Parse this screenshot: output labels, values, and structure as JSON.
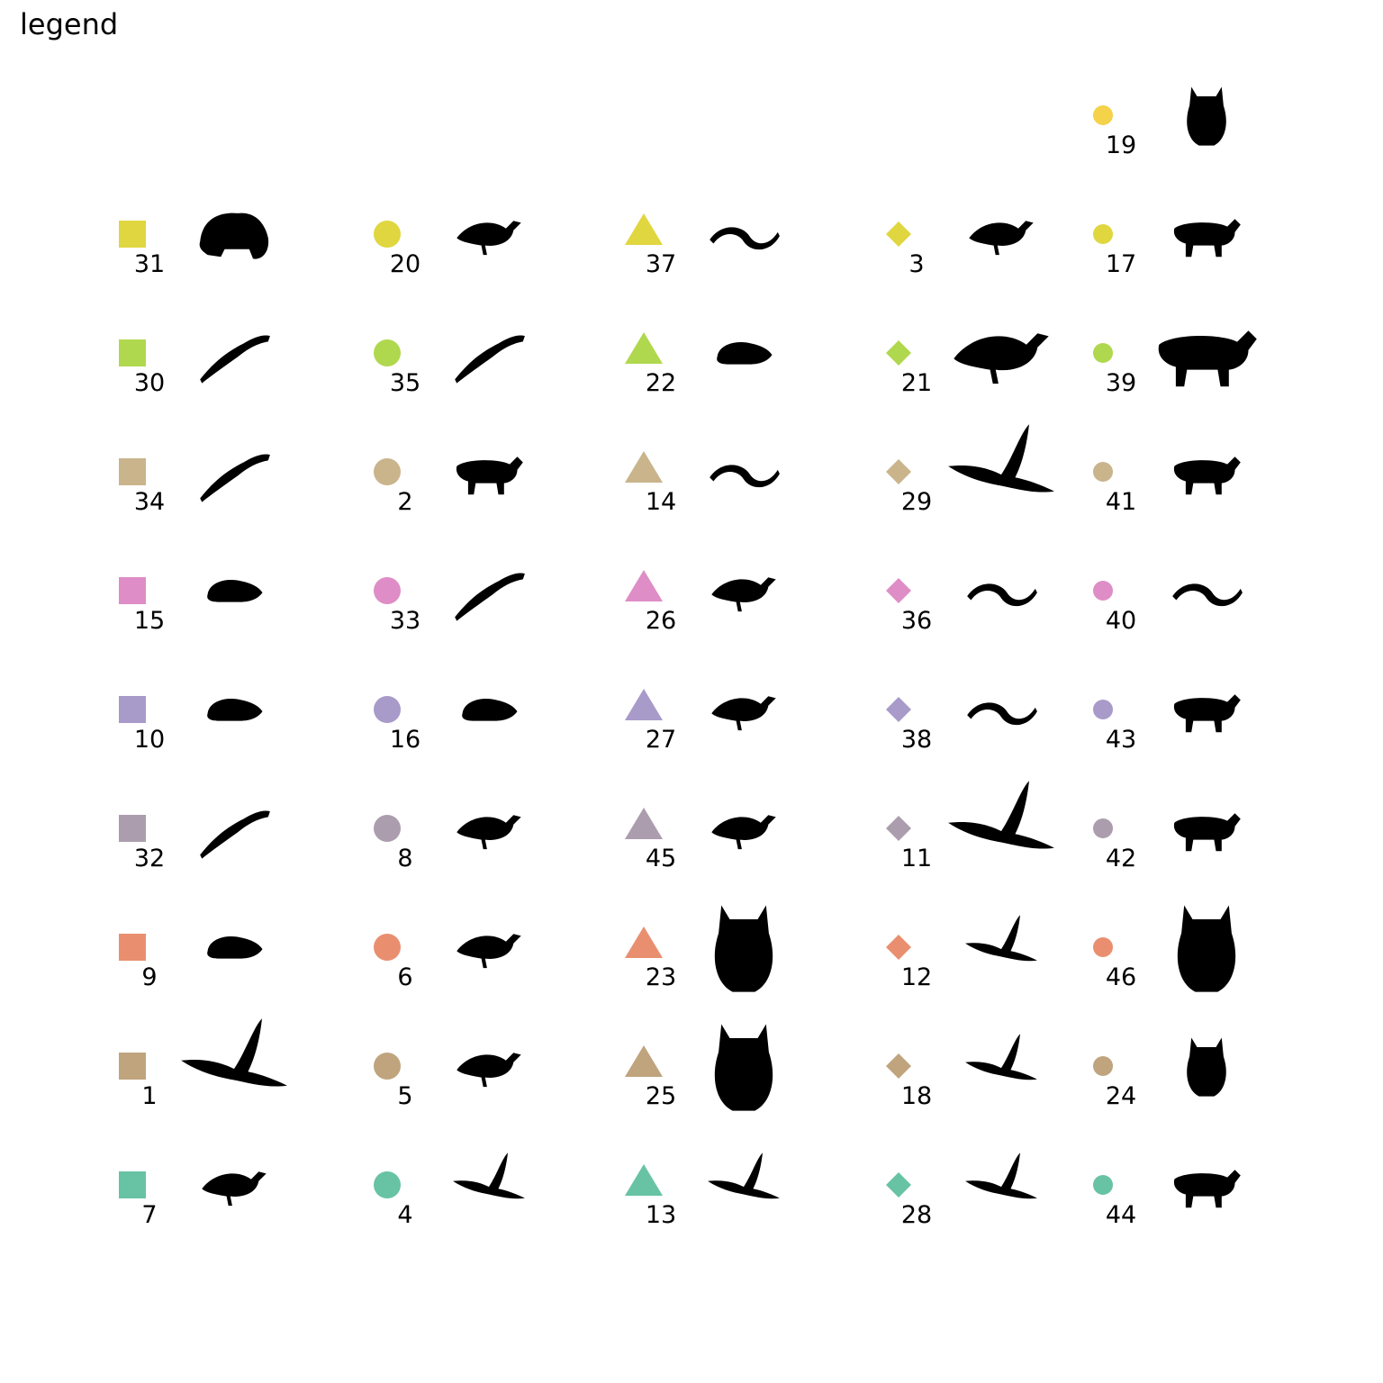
{
  "title": "legend",
  "columns": [
    {
      "marker": "square",
      "entries": [
        {
          "id": "31",
          "color": "#e0d63f",
          "icon": "frog-icon"
        },
        {
          "id": "30",
          "color": "#b0d84e",
          "icon": "lizard-icon"
        },
        {
          "id": "34",
          "color": "#c9b48c",
          "icon": "newt-icon"
        },
        {
          "id": "15",
          "color": "#de8dc6",
          "icon": "vole-icon"
        },
        {
          "id": "10",
          "color": "#a89ac9",
          "icon": "shrew-icon"
        },
        {
          "id": "32",
          "color": "#ab9dad",
          "icon": "lizard-icon"
        },
        {
          "id": "9",
          "color": "#e98f70",
          "icon": "mouse-icon"
        },
        {
          "id": "1",
          "color": "#bfa47e",
          "icon": "albatross-icon"
        },
        {
          "id": "7",
          "color": "#67c3a4",
          "icon": "warbler-icon"
        }
      ]
    },
    {
      "marker": "circle",
      "entries": [
        {
          "id": "20",
          "color": "#e0d63f",
          "icon": "sandpiper-icon"
        },
        {
          "id": "35",
          "color": "#b0d84e",
          "icon": "gecko-icon"
        },
        {
          "id": "2",
          "color": "#c9b48c",
          "icon": "squirrel-icon"
        },
        {
          "id": "33",
          "color": "#de8dc6",
          "icon": "salamander-icon"
        },
        {
          "id": "16",
          "color": "#a89ac9",
          "icon": "mole-icon"
        },
        {
          "id": "8",
          "color": "#ab9dad",
          "icon": "songbird-icon"
        },
        {
          "id": "6",
          "color": "#e98f70",
          "icon": "wagtail-icon"
        },
        {
          "id": "5",
          "color": "#bfa47e",
          "icon": "wren-icon"
        },
        {
          "id": "4",
          "color": "#67c3a4",
          "icon": "swift-icon"
        }
      ]
    },
    {
      "marker": "triangle",
      "entries": [
        {
          "id": "37",
          "color": "#e0d63f",
          "icon": "slowworm-icon"
        },
        {
          "id": "22",
          "color": "#b0d84e",
          "icon": "hedgehog-icon"
        },
        {
          "id": "14",
          "color": "#c9b48c",
          "icon": "snake-coil-icon"
        },
        {
          "id": "26",
          "color": "#de8dc6",
          "icon": "crow-icon"
        },
        {
          "id": "27",
          "color": "#a89ac9",
          "icon": "finch-icon"
        },
        {
          "id": "45",
          "color": "#ab9dad",
          "icon": "perched-bird-icon"
        },
        {
          "id": "23",
          "color": "#e98f70",
          "icon": "eagle-owl-icon"
        },
        {
          "id": "25",
          "color": "#bfa47e",
          "icon": "tawny-owl-icon"
        },
        {
          "id": "13",
          "color": "#67c3a4",
          "icon": "swallow-icon"
        }
      ]
    },
    {
      "marker": "diamond",
      "entries": [
        {
          "id": "3",
          "color": "#e0d63f",
          "icon": "gull-icon"
        },
        {
          "id": "21",
          "color": "#b0d84e",
          "icon": "heron-icon"
        },
        {
          "id": "29",
          "color": "#c9b48c",
          "icon": "kite-icon"
        },
        {
          "id": "36",
          "color": "#de8dc6",
          "icon": "grass-snake-icon"
        },
        {
          "id": "38",
          "color": "#a89ac9",
          "icon": "viper-icon"
        },
        {
          "id": "11",
          "color": "#ab9dad",
          "icon": "buzzard-icon"
        },
        {
          "id": "12",
          "color": "#e98f70",
          "icon": "flying-bird-icon"
        },
        {
          "id": "18",
          "color": "#bfa47e",
          "icon": "falcon-icon"
        },
        {
          "id": "28",
          "color": "#67c3a4",
          "icon": "osprey-icon"
        }
      ]
    },
    {
      "marker": "small-circle",
      "entries": [
        {
          "id": "19",
          "color": "#f4d24a",
          "icon": "owl-icon"
        },
        {
          "id": "17",
          "color": "#e0d63f",
          "icon": "lynx-icon"
        },
        {
          "id": "39",
          "color": "#b0d84e",
          "icon": "weasel-icon"
        },
        {
          "id": "41",
          "color": "#c9b48c",
          "icon": "boar-icon"
        },
        {
          "id": "40",
          "color": "#de8dc6",
          "icon": "grass-snake-icon"
        },
        {
          "id": "43",
          "color": "#a89ac9",
          "icon": "badger-icon"
        },
        {
          "id": "42",
          "color": "#ab9dad",
          "icon": "wolf-icon"
        },
        {
          "id": "46",
          "color": "#e98f70",
          "icon": "eagle-owl-icon"
        },
        {
          "id": "24",
          "color": "#bfa47e",
          "icon": "owl-icon"
        },
        {
          "id": "44",
          "color": "#67c3a4",
          "icon": "marten-icon"
        }
      ]
    }
  ]
}
